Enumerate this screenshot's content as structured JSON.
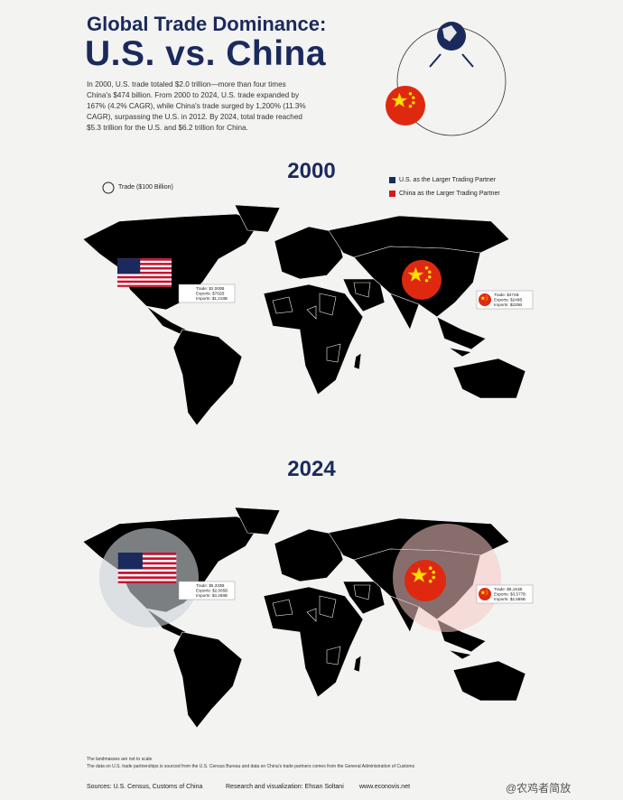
{
  "header": {
    "title_line1": "Global Trade Dominance:",
    "title_line2": "U.S. vs. China",
    "intro": "In 2000, U.S. trade totaled $2.0 trillion—more than four times China's $474 billion. From 2000 to 2024, U.S. trade expanded by 167% (4.2% CAGR), while China's trade surged by 1,200% (11.3% CAGR), surpassing the U.S. in 2012. By 2024, total trade reached $5.3 trillion for the U.S. and $6.2 trillion for China."
  },
  "legend": {
    "bubble": "Trade ($100 Billion)",
    "us": "U.S. as the Larger Trading Partner",
    "china": "China as the Larger Trading Partner"
  },
  "maps": [
    {
      "year": "2000",
      "us": [
        "Trade: $2,000B",
        "Exports: $782B",
        "Imports: $1,218B"
      ],
      "china": [
        "Trade: $474B",
        "Exports: $249B",
        "Imports: $225B"
      ]
    },
    {
      "year": "2024",
      "us": [
        "Trade: $5,333B",
        "Exports: $2,065B",
        "Imports: $3,268B"
      ],
      "china": [
        "Trade: $6,161B",
        "Exports: $3,577B",
        "Imports: $2,585B"
      ]
    }
  ],
  "notes": [
    "The landmasses are not to scale",
    "The data on U.S. trade partnerships is sourced from the U.S. Census Bureau and data on China's trade partners comes from the General Administration of Customs"
  ],
  "footer": {
    "sources": "Sources: U.S. Census, Customs of China",
    "credit": "Research and visualization: Ehsan Soltani",
    "site": "www.econovis.net",
    "handle": "@农鸡者简放"
  }
}
